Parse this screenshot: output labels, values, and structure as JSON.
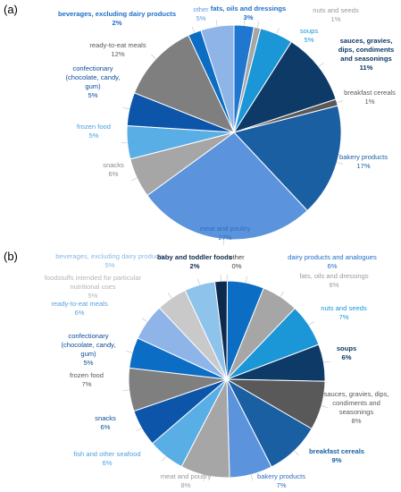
{
  "chart_data": [
    {
      "panel_label": "(a)",
      "type": "pie",
      "slices": [
        {
          "label": "fats, oils and dressings",
          "value": 3,
          "color": "#1f77d0",
          "label_color": "#1f6ec8",
          "bold": true,
          "lines": [
            "fats, oils and dressings",
            "3%"
          ]
        },
        {
          "label": "nuts and seeds",
          "value": 1,
          "color": "#a6a6a6",
          "label_color": "#9a9a9a",
          "bold": false,
          "lines": [
            "nuts and seeds",
            "1%"
          ]
        },
        {
          "label": "soups",
          "value": 5,
          "color": "#1b96d6",
          "label_color": "#1b96d6",
          "bold": false,
          "lines": [
            "soups",
            "5%"
          ]
        },
        {
          "label": "sauces, gravies, dips, condiments and seasonings",
          "value": 11,
          "color": "#0d3a66",
          "label_color": "#0d3a66",
          "bold": true,
          "lines": [
            "sauces, gravies,",
            "dips, condiments",
            "and seasonings",
            "11%"
          ]
        },
        {
          "label": "breakfast cereals",
          "value": 1,
          "color": "#595959",
          "label_color": "#595959",
          "bold": false,
          "lines": [
            "breakfast cereals",
            "1%"
          ]
        },
        {
          "label": "bakery products",
          "value": 17,
          "color": "#1b5fa3",
          "label_color": "#1b5fa3",
          "bold": false,
          "lines": [
            "bakery products",
            "17%"
          ]
        },
        {
          "label": "meat and poultry",
          "value": 27,
          "color": "#5b93dd",
          "label_color": "#2f6fbf",
          "bold": false,
          "lines": [
            "meat and poultry",
            "27%"
          ]
        },
        {
          "label": "snacks",
          "value": 6,
          "color": "#a6a6a6",
          "label_color": "#8a8a8a",
          "bold": false,
          "lines": [
            "snacks",
            "6%"
          ]
        },
        {
          "label": "frozen food",
          "value": 5,
          "color": "#5aaee6",
          "label_color": "#4aa0e0",
          "bold": false,
          "lines": [
            "frozen food",
            "5%"
          ]
        },
        {
          "label": "confectionary (chocolate, candy, gum)",
          "value": 5,
          "color": "#0c55a8",
          "label_color": "#0c4d99",
          "bold": false,
          "lines": [
            "confectionary",
            "(chocolate, candy,",
            "gum)",
            "5%"
          ]
        },
        {
          "label": "ready-to-eat meals",
          "value": 12,
          "color": "#7f7f7f",
          "label_color": "#595959",
          "bold": false,
          "lines": [
            "ready-to-eat meals",
            "12%"
          ]
        },
        {
          "label": "beverages, excluding dairy products",
          "value": 2,
          "color": "#0b6dc4",
          "label_color": "#1f6ec8",
          "bold": true,
          "lines": [
            "beverages, excluding dairy products",
            "2%"
          ]
        },
        {
          "label": "other",
          "value": 5,
          "color": "#8eb4e8",
          "label_color": "#5aa0e0",
          "bold": false,
          "lines": [
            "other",
            "5%"
          ]
        }
      ]
    },
    {
      "panel_label": "(b)",
      "type": "pie",
      "slices": [
        {
          "label": "other",
          "value": 0,
          "color": "#262626",
          "label_color": "#404040",
          "bold": false,
          "lines": [
            "other",
            "0%"
          ]
        },
        {
          "label": "dairy products and analogues",
          "value": 6,
          "color": "#0b6dc4",
          "label_color": "#1f6ec8",
          "bold": false,
          "lines": [
            "dairy products and analogues",
            "6%"
          ]
        },
        {
          "label": "fats, oils and dressings",
          "value": 6,
          "color": "#a6a6a6",
          "label_color": "#9a9a9a",
          "bold": false,
          "lines": [
            "fats, oils and dressings",
            "6%"
          ]
        },
        {
          "label": "nuts and seeds",
          "value": 7,
          "color": "#1b96d6",
          "label_color": "#1b96d6",
          "bold": false,
          "lines": [
            "nuts and seeds",
            "7%"
          ]
        },
        {
          "label": "soups",
          "value": 6,
          "color": "#0d3a66",
          "label_color": "#0d3a66",
          "bold": true,
          "lines": [
            "soups",
            "6%"
          ]
        },
        {
          "label": "sauces, gravies, dips, condiments and seasonings",
          "value": 8,
          "color": "#595959",
          "label_color": "#595959",
          "bold": false,
          "lines": [
            "sauces, gravies, dips,",
            "condiments and",
            "seasonings",
            "8%"
          ]
        },
        {
          "label": "breakfast cereals",
          "value": 9,
          "color": "#1b5fa3",
          "label_color": "#1b5fa3",
          "bold": true,
          "lines": [
            "breakfast cereals",
            "9%"
          ]
        },
        {
          "label": "bakery products",
          "value": 7,
          "color": "#5b93dd",
          "label_color": "#2f6fbf",
          "bold": false,
          "lines": [
            "bakery products",
            "7%"
          ]
        },
        {
          "label": "meat and poultry",
          "value": 8,
          "color": "#a6a6a6",
          "label_color": "#9a9a9a",
          "bold": false,
          "lines": [
            "meat and poultry",
            "8%"
          ]
        },
        {
          "label": "fish and other seafood",
          "value": 6,
          "color": "#5aaee6",
          "label_color": "#4aa0e0",
          "bold": false,
          "lines": [
            "fish and other seafood",
            "6%"
          ]
        },
        {
          "label": "snacks",
          "value": 6,
          "color": "#0c55a8",
          "label_color": "#0c4d99",
          "bold": false,
          "lines": [
            "snacks",
            "6%"
          ]
        },
        {
          "label": "frozen food",
          "value": 7,
          "color": "#7f7f7f",
          "label_color": "#595959",
          "bold": false,
          "lines": [
            "frozen food",
            "7%"
          ]
        },
        {
          "label": "confectionary (chocolate, candy, gum)",
          "value": 5,
          "color": "#0b6dc4",
          "label_color": "#0c4d99",
          "bold": false,
          "lines": [
            "confectionary",
            "(chocolate, candy,",
            "gum)",
            "5%"
          ]
        },
        {
          "label": "ready-to-eat meals",
          "value": 6,
          "color": "#8eb4e8",
          "label_color": "#5aa0e0",
          "bold": false,
          "lines": [
            "ready-to-eat meals",
            "6%"
          ]
        },
        {
          "label": "foodstuffs intended for particular nutritional uses",
          "value": 5,
          "color": "#c9c9c9",
          "label_color": "#b5b5b5",
          "bold": false,
          "lines": [
            "foodstuffs intended for particular",
            "nutritional uses",
            "5%"
          ]
        },
        {
          "label": "beverages, excluding dairy products",
          "value": 5,
          "color": "#8ec3ec",
          "label_color": "#8ab8e6",
          "bold": false,
          "lines": [
            "beverages, excluding dairy products",
            "5%"
          ]
        },
        {
          "label": "baby and toddler foods",
          "value": 2,
          "color": "#0d2a4d",
          "label_color": "#0d2a4d",
          "bold": true,
          "lines": [
            "baby and toddler foods",
            "2%"
          ]
        }
      ]
    }
  ]
}
